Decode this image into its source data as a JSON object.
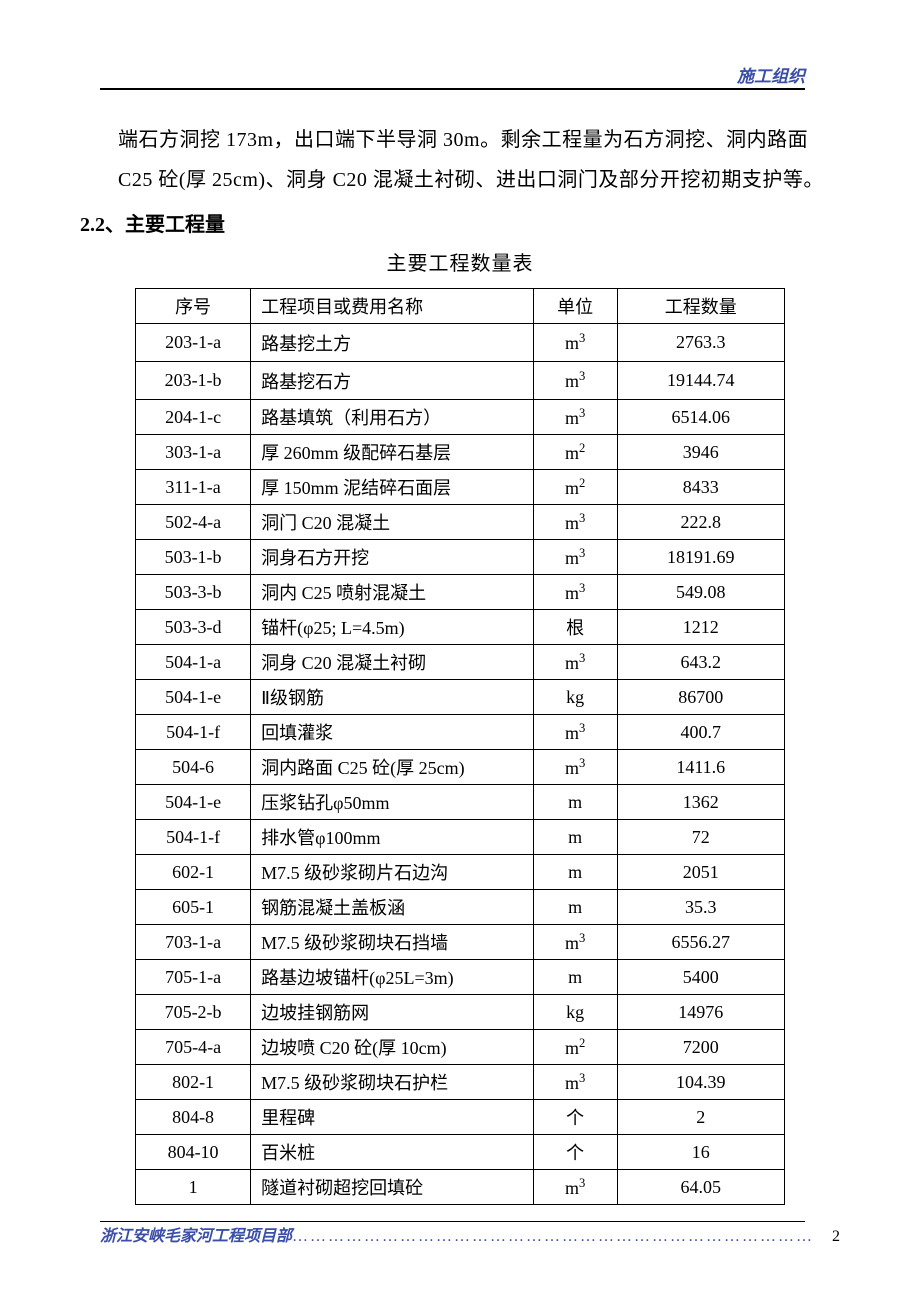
{
  "header": {
    "rightText": "施工组织"
  },
  "body": {
    "paragraph": "端石方洞挖 173m，出口端下半导洞 30m。剩余工程量为石方洞挖、洞内路面 C25 砼(厚 25cm)、洞身 C20 混凝土衬砌、进出口洞门及部分开挖初期支护等。",
    "sectionNumber": "2.2、",
    "sectionTitle": "主要工程量",
    "tableTitle": "主要工程数量表"
  },
  "table": {
    "headers": {
      "seq": "序号",
      "name": "工程项目或费用名称",
      "unit": "单位",
      "qty": "工程数量"
    },
    "rows": [
      {
        "seq": "203-1-a",
        "name": "路基挖土方",
        "unit": "m³",
        "qty": "2763.3"
      },
      {
        "seq": "203-1-b",
        "name": "路基挖石方",
        "unit": "m³",
        "qty": "19144.74"
      },
      {
        "seq": "204-1-c",
        "name": "路基填筑（利用石方）",
        "unit": "m³",
        "qty": "6514.06"
      },
      {
        "seq": "303-1-a",
        "name": "厚 260mm 级配碎石基层",
        "unit": "m²",
        "qty": "3946"
      },
      {
        "seq": "311-1-a",
        "name": "厚 150mm 泥结碎石面层",
        "unit": "m²",
        "qty": "8433"
      },
      {
        "seq": "502-4-a",
        "name": "洞门 C20 混凝土",
        "unit": "m³",
        "qty": "222.8"
      },
      {
        "seq": "503-1-b",
        "name": "洞身石方开挖",
        "unit": "m³",
        "qty": "18191.69"
      },
      {
        "seq": "503-3-b",
        "name": "洞内 C25 喷射混凝土",
        "unit": "m³",
        "qty": "549.08"
      },
      {
        "seq": "503-3-d",
        "name": "锚杆(φ25; L=4.5m)",
        "unit": "根",
        "qty": "1212"
      },
      {
        "seq": "504-1-a",
        "name": "洞身 C20 混凝土衬砌",
        "unit": "m³",
        "qty": "643.2"
      },
      {
        "seq": "504-1-e",
        "name": "Ⅱ级钢筋",
        "unit": "kg",
        "qty": "86700"
      },
      {
        "seq": "504-1-f",
        "name": "回填灌浆",
        "unit": "m³",
        "qty": "400.7"
      },
      {
        "seq": "504-6",
        "name": "洞内路面 C25 砼(厚 25cm)",
        "unit": "m³",
        "qty": "1411.6"
      },
      {
        "seq": "504-1-e",
        "name": "压浆钻孔φ50mm",
        "unit": "m",
        "qty": "1362"
      },
      {
        "seq": "504-1-f",
        "name": "排水管φ100mm",
        "unit": "m",
        "qty": "72"
      },
      {
        "seq": "602-1",
        "name": "M7.5 级砂浆砌片石边沟",
        "unit": "m",
        "qty": "2051"
      },
      {
        "seq": "605-1",
        "name": "钢筋混凝土盖板涵",
        "unit": "m",
        "qty": "35.3"
      },
      {
        "seq": "703-1-a",
        "name": "M7.5 级砂浆砌块石挡墙",
        "unit": "m³",
        "qty": "6556.27"
      },
      {
        "seq": "705-1-a",
        "name": "路基边坡锚杆(φ25L=3m)",
        "unit": "m",
        "qty": "5400"
      },
      {
        "seq": "705-2-b",
        "name": "边坡挂钢筋网",
        "unit": "kg",
        "qty": "14976"
      },
      {
        "seq": "705-4-a",
        "name": "边坡喷 C20 砼(厚 10cm)",
        "unit": "m²",
        "qty": "7200"
      },
      {
        "seq": "802-1",
        "name": "M7.5 级砂浆砌块石护栏",
        "unit": "m³",
        "qty": "104.39"
      },
      {
        "seq": "804-8",
        "name": "里程碑",
        "unit": "个",
        "qty": "2"
      },
      {
        "seq": "804-10",
        "name": "百米桩",
        "unit": "个",
        "qty": "16"
      },
      {
        "seq": "1",
        "name": "隧道衬砌超挖回填砼",
        "unit": "m³",
        "qty": "64.05"
      }
    ]
  },
  "footer": {
    "text": "浙江安峡毛家河工程项目部",
    "pageNumber": "2"
  },
  "colors": {
    "headerText": "#3b4ea8",
    "bodyText": "#000000",
    "tableBorder": "#000000",
    "background": "#ffffff"
  }
}
